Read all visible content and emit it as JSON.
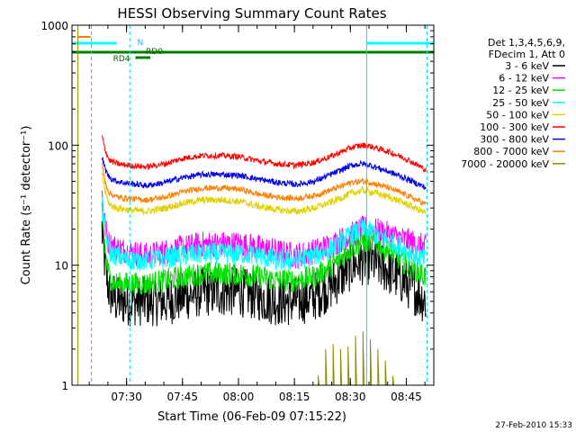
{
  "chart_data": {
    "type": "line",
    "title": "HESSI Observing Summary Count Rates",
    "xlabel": "Start Time (06-Feb-09 07:15:22)",
    "ylabel": "Count Rate (s⁻¹ detector⁻¹)",
    "y_scale": "log",
    "ylim": [
      1,
      1000
    ],
    "xlim_minutes": [
      0,
      97
    ],
    "x_tick_labels": [
      "07:30",
      "07:45",
      "08:00",
      "08:15",
      "08:30",
      "08:45"
    ],
    "y_tick_labels": [
      "1",
      "10",
      "100",
      "1000"
    ],
    "legend": {
      "placement": "right",
      "header": [
        "Det 1,3,4,5,6,9,",
        "FDecim 1, Att 0"
      ]
    },
    "series": [
      {
        "name": "3 - 6 keV",
        "color": "#000000",
        "x": [
          8,
          9,
          10,
          12,
          15,
          20,
          25,
          30,
          35,
          40,
          45,
          50,
          55,
          60,
          65,
          70,
          75,
          78,
          80,
          85,
          90,
          95
        ],
        "y": [
          20,
          9,
          6,
          5,
          5,
          5,
          5,
          5.5,
          6,
          6,
          6,
          5.5,
          5,
          5,
          5.5,
          7,
          10,
          11,
          11,
          9,
          7,
          5
        ]
      },
      {
        "name": "6 - 12 keV",
        "color": "#ff00ff",
        "x": [
          8,
          9,
          10,
          12,
          15,
          20,
          25,
          30,
          35,
          40,
          45,
          50,
          55,
          60,
          65,
          70,
          75,
          78,
          80,
          85,
          90,
          95
        ],
        "y": [
          40,
          20,
          15,
          14,
          13,
          12,
          13,
          14,
          15,
          15,
          15,
          14,
          13,
          12,
          13,
          15,
          18,
          20,
          20,
          18,
          16,
          14
        ]
      },
      {
        "name": "12 - 25 keV",
        "color": "#00e000",
        "x": [
          8,
          9,
          10,
          12,
          15,
          20,
          25,
          30,
          35,
          40,
          45,
          50,
          55,
          60,
          65,
          70,
          75,
          78,
          80,
          85,
          90,
          95
        ],
        "y": [
          30,
          12,
          8,
          7,
          7,
          7,
          7.5,
          8,
          8.5,
          8.5,
          8.5,
          8,
          7.5,
          7.5,
          8,
          10,
          14,
          16,
          16,
          13,
          10,
          8
        ]
      },
      {
        "name": "25 - 50 keV",
        "color": "#00ffff",
        "x": [
          8,
          9,
          10,
          12,
          15,
          20,
          25,
          30,
          35,
          40,
          45,
          50,
          55,
          60,
          65,
          70,
          75,
          78,
          80,
          85,
          90,
          95
        ],
        "y": [
          35,
          18,
          13,
          12,
          11,
          11,
          11.5,
          12,
          12.5,
          12.5,
          12.5,
          12,
          11,
          11,
          12,
          14,
          18,
          20,
          19,
          16,
          13,
          11
        ]
      },
      {
        "name": "50 - 100 keV",
        "color": "#e0d000",
        "x": [
          8,
          9,
          10,
          12,
          15,
          20,
          25,
          30,
          35,
          40,
          45,
          50,
          55,
          60,
          65,
          70,
          75,
          78,
          80,
          85,
          90,
          95
        ],
        "y": [
          60,
          40,
          32,
          30,
          29,
          28,
          30,
          33,
          35,
          35,
          34,
          31,
          29,
          28,
          30,
          34,
          40,
          42,
          41,
          37,
          32,
          27
        ]
      },
      {
        "name": "100 - 300 keV",
        "color": "#ff0000",
        "x": [
          8,
          9,
          10,
          12,
          15,
          20,
          25,
          30,
          35,
          40,
          45,
          50,
          55,
          60,
          65,
          70,
          75,
          78,
          80,
          85,
          90,
          95
        ],
        "y": [
          120,
          90,
          75,
          70,
          68,
          66,
          70,
          78,
          82,
          82,
          80,
          74,
          70,
          68,
          72,
          82,
          96,
          100,
          98,
          88,
          76,
          62
        ]
      },
      {
        "name": "300 - 800 keV",
        "color": "#0000e0",
        "x": [
          8,
          9,
          10,
          12,
          15,
          20,
          25,
          30,
          35,
          40,
          45,
          50,
          55,
          60,
          65,
          70,
          75,
          78,
          80,
          85,
          90,
          95
        ],
        "y": [
          80,
          62,
          54,
          50,
          48,
          46,
          49,
          54,
          57,
          57,
          56,
          52,
          49,
          47,
          50,
          58,
          68,
          70,
          68,
          60,
          52,
          44
        ]
      },
      {
        "name": "800 - 7000 keV",
        "color": "#ff8000",
        "x": [
          8,
          9,
          10,
          12,
          15,
          20,
          25,
          30,
          35,
          40,
          45,
          50,
          55,
          60,
          65,
          70,
          75,
          78,
          80,
          85,
          90,
          95
        ],
        "y": [
          70,
          48,
          40,
          37,
          36,
          35,
          37,
          41,
          44,
          44,
          43,
          39,
          37,
          36,
          38,
          43,
          49,
          50,
          49,
          44,
          38,
          32
        ]
      },
      {
        "name": "7000 - 20000 keV",
        "color": "#8b8b00",
        "x": [
          66,
          68,
          70,
          72,
          74,
          76,
          78,
          80,
          82,
          84,
          86
        ],
        "y": [
          1.2,
          2.0,
          2.2,
          2.0,
          2.1,
          2.6,
          2.8,
          2.4,
          2.0,
          1.6,
          1.2
        ]
      }
    ],
    "annotations": [
      {
        "text": "N",
        "color": "#00bfff"
      },
      {
        "text": "RD0",
        "color": "#006400"
      },
      {
        "text": "RD4",
        "color": "#006400"
      }
    ],
    "timestamp": "27-Feb-2010 15:33"
  }
}
